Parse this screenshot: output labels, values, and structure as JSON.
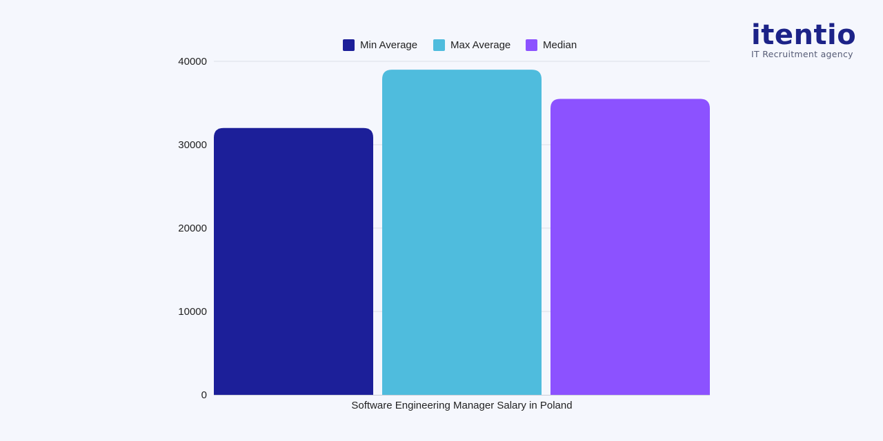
{
  "chart_data": {
    "type": "bar",
    "categories": [
      "Software Engineering Manager Salary in Poland"
    ],
    "series": [
      {
        "name": "Min Average",
        "values": [
          32000
        ],
        "color": "#1c1f99"
      },
      {
        "name": "Max Average",
        "values": [
          39000
        ],
        "color": "#4fbcdd"
      },
      {
        "name": "Median",
        "values": [
          35500
        ],
        "color": "#8c52ff"
      }
    ],
    "yticks": [
      "0",
      "10000",
      "20000",
      "30000",
      "40000"
    ],
    "ylim": [
      0,
      40000
    ],
    "xlabel": "",
    "ylabel": "",
    "grid": true,
    "legend_position": "top-center"
  },
  "brand": {
    "name": "itentio",
    "tagline": "IT Recruitment agency"
  }
}
